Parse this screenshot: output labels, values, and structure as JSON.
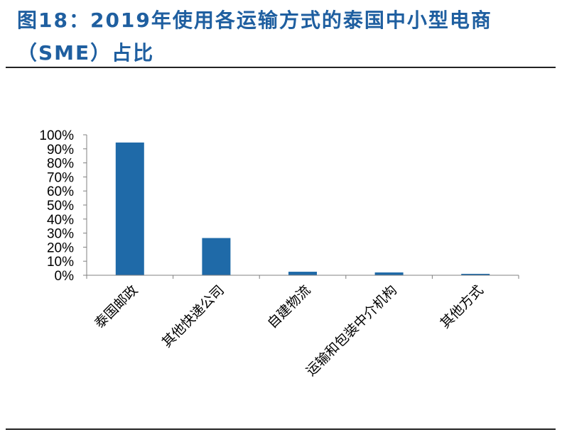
{
  "figure": {
    "title": "图18：2019年使用各运输方式的泰国中小型电商（SME）占比"
  },
  "chart_data": {
    "type": "bar",
    "title": "图18：2019年使用各运输方式的泰国中小型电商（SME）占比",
    "categories": [
      "泰国邮政",
      "其他快递公司",
      "自建物流",
      "运输和包装中介机构",
      "其他方式"
    ],
    "values": [
      94.5,
      26.5,
      2.5,
      2.0,
      1.0
    ],
    "ylim": [
      0,
      100
    ],
    "yticks": [
      "0%",
      "10%",
      "20%",
      "30%",
      "40%",
      "50%",
      "60%",
      "70%",
      "80%",
      "90%",
      "100%"
    ],
    "xlabel": "",
    "ylabel": "",
    "grid": false,
    "bar_color": "#1f6aa8"
  }
}
